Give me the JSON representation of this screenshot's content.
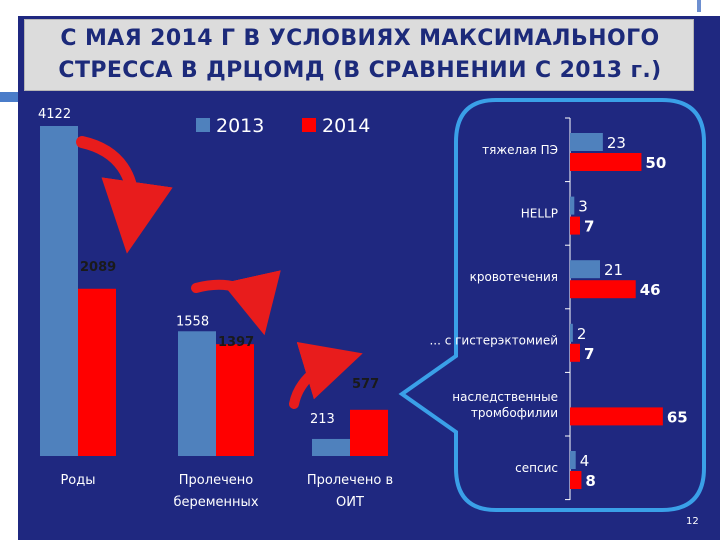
{
  "slide": {
    "title_line1": "С МАЯ 2014 Г В УСЛОВИЯХ МАКСИМАЛЬНОГО",
    "title_line2": "СТРЕССА В ДРЦОМД (В СРАВНЕНИИ С 2013 г.)",
    "page_number": "12"
  },
  "colors": {
    "background": "#1f2880",
    "series_2013": "#4f81bd",
    "series_2014": "#ff0000",
    "callout_border": "#3aa0e8",
    "title_text": "#1c2a7a"
  },
  "chart_data": [
    {
      "type": "bar",
      "orientation": "vertical",
      "categories": [
        "Роды",
        "Пролечено беременных",
        "Пролечено в ОИТ"
      ],
      "series": [
        {
          "name": "2013",
          "values": [
            4122,
            1558,
            213
          ]
        },
        {
          "name": "2014",
          "values": [
            2089,
            1397,
            577
          ]
        }
      ],
      "ylim": [
        0,
        4122
      ],
      "legend": "top",
      "grid": false
    },
    {
      "type": "bar",
      "orientation": "horizontal",
      "categories": [
        "тяжелая ПЭ",
        "HELLP",
        "кровотечения",
        "... с гистерэктомией",
        "наследственные тромбофилии",
        "сепсис"
      ],
      "series": [
        {
          "name": "2013",
          "values": [
            23,
            3,
            21,
            2,
            0,
            4
          ]
        },
        {
          "name": "2014",
          "values": [
            50,
            7,
            46,
            7,
            65,
            8
          ]
        }
      ],
      "xlim": [
        0,
        70
      ],
      "grid": false
    }
  ]
}
